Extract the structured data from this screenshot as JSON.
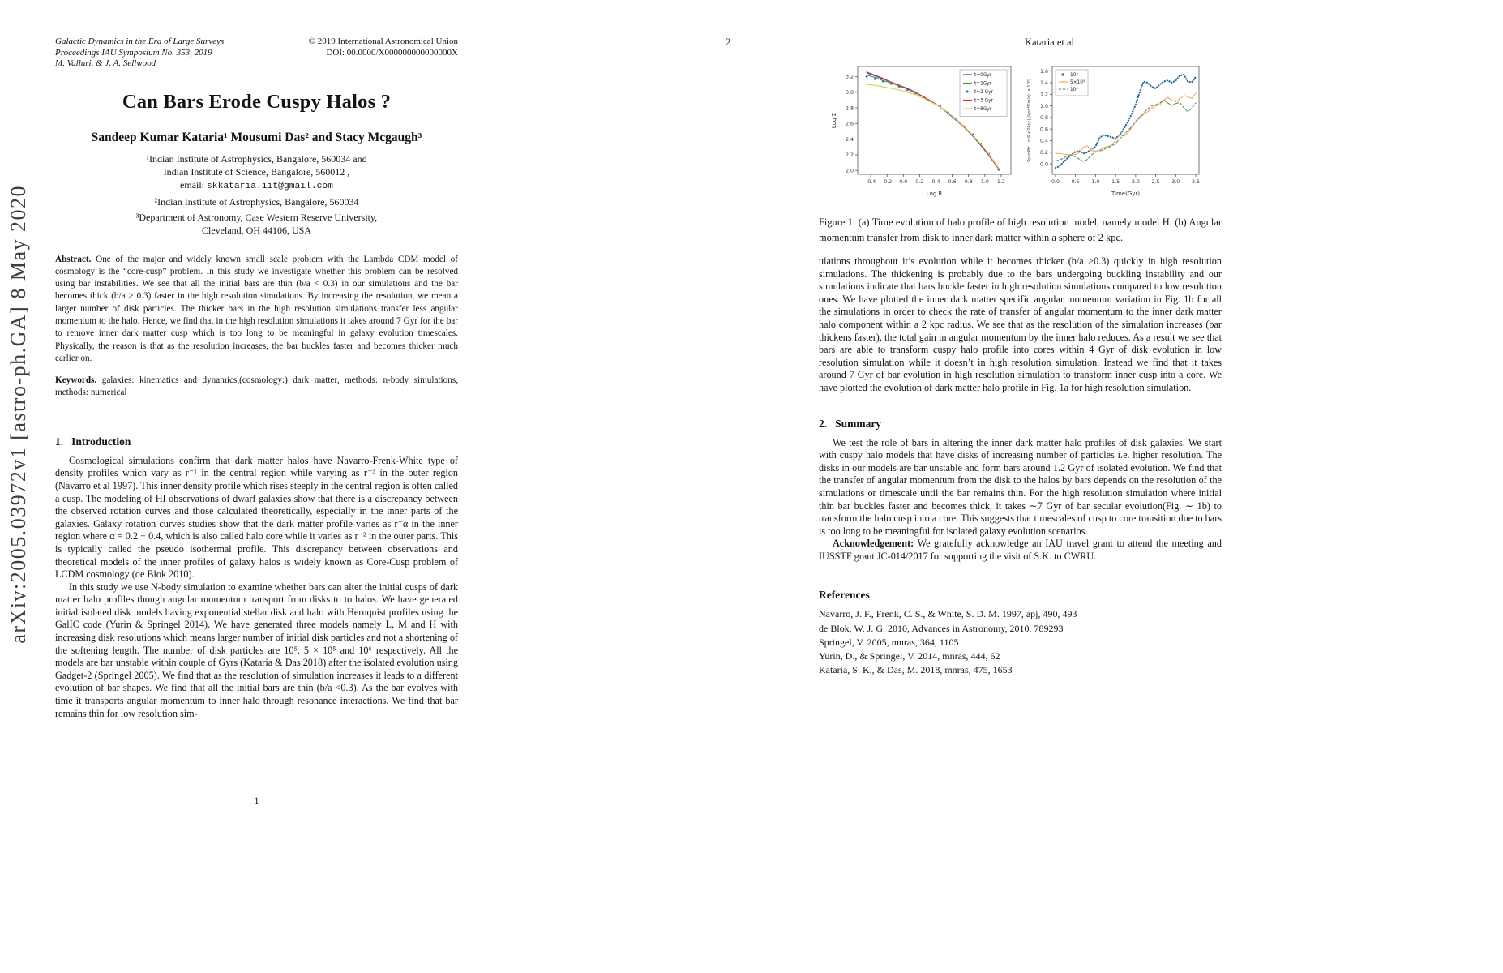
{
  "sidebar": {
    "arxiv_stamp": "arXiv:2005.03972v1  [astro-ph.GA]  8 May 2020"
  },
  "page1": {
    "header": {
      "series": "Galactic Dynamics in the Era of Large Surveys",
      "proceedings": "Proceedings IAU Symposium No. 353, 2019",
      "editors": "M. Valluri, & J. A. Sellwood",
      "copyright": "© 2019 International Astronomical Union",
      "doi": "DOI: 00.0000/X000000000000000X"
    },
    "title": "Can Bars Erode Cuspy Halos ?",
    "authors": "Sandeep Kumar Kataria¹ Mousumi Das² and Stacy Mcgaugh³",
    "affiliations": {
      "line1": "¹Indian Institute of Astrophysics, Bangalore, 560034 and",
      "line2": "Indian Institute of Science, Bangalore, 560012 ,",
      "email_label": "email: ",
      "email_value": "skkataria.iit@gmail.com",
      "line3": "²Indian Institute of Astrophysics, Bangalore, 560034",
      "line4": "³Department of Astronomy, Case Western Reserve University,",
      "line5": "Cleveland, OH 44106, USA"
    },
    "abstract": {
      "label": "Abstract.",
      "text": " One of the major and widely known small scale problem with the Lambda CDM model of cosmology is the “core-cusp” problem. In this study we investigate whether this problem can be resolved using bar instabilities. We see that all the initial bars are thin (b/a < 0.3) in our simulations and the bar becomes thick (b/a > 0.3) faster in the high resolution simulations. By increasing the resolution, we mean a larger number of disk particles. The thicker bars in the high resolution simulations transfer less angular momentum to the halo. Hence, we find that in the high resolution simulations it takes around 7 Gyr for the bar to remove inner dark matter cusp which is too long to be meaningful in galaxy evolution timescales. Physically, the reason is that as the resolution increases, the bar buckles faster and becomes thicker much earlier on."
    },
    "keywords": {
      "label": "Keywords.",
      "text": " galaxies: kinematics and dynamics,(cosmology:) dark matter, methods: n-body simulations, methods: numerical"
    },
    "intro": {
      "number": "1.",
      "heading": "Introduction",
      "para1": "Cosmological simulations confirm that dark matter halos have Navarro-Frenk-White type of density profiles which vary as r⁻¹ in the central region while varying as r⁻³ in the outer region (Navarro et al 1997). This inner density profile which rises steeply in the central region is often called a cusp. The modeling of HI observations of dwarf galaxies show that there is a discrepancy between the observed rotation curves and those calculated theoretically, especially in the inner parts of the galaxies. Galaxy rotation curves studies show that the dark matter profile varies as r⁻α in the inner region where α = 0.2 − 0.4, which is also called halo core while it varies as r⁻² in the outer parts. This is typically called the pseudo isothermal profile. This discrepancy between observations and theoretical models of the inner profiles of galaxy halos is widely known as Core-Cusp problem of LCDM cosmology (de Blok 2010).",
      "para2": "In this study we use N-body simulation to examine whether bars can alter the initial cusps of dark matter halo profiles though angular momentum transport from disks to to halos. We have generated initial isolated disk models having exponential stellar disk and halo with Hernquist profiles using the GalIC code (Yurin & Springel 2014). We have generated three models namely L, M and H with increasing disk resolutions which means larger number of initial disk particles and not a shortening of the softening length. The number of disk particles are 10⁵, 5 × 10⁵ and 10⁶ respectively. All the models are bar unstable within couple of Gyrs (Kataria & Das 2018) after the isolated evolution using Gadget-2 (Springel 2005). We find that as the resolution of simulation increases it leads to a different evolution of bar shapes. We find that all the initial bars are thin (b/a <0.3). As the bar evolves with time it transports angular momentum to inner halo through resonance interactions. We find that bar remains thin for low resolution sim-"
    },
    "page_number": "1"
  },
  "page2": {
    "page_number": "2",
    "running_head": "Kataria et al",
    "figure_caption": "Figure 1: (a) Time evolution of halo profile of high resolution model, namely model H. (b) Angular momentum transfer from disk to inner dark matter within a sphere of 2 kpc.",
    "para1": "ulations throughout it’s evolution while it becomes thicker (b/a >0.3) quickly in high resolution simulations. The thickening is probably due to the bars undergoing buckling instability and our simulations indicate that bars buckle faster in high resolution simulations compared to low resolution ones. We have plotted the inner dark matter specific angular momentum variation in Fig. 1b for all the simulations in order to check the rate of transfer of angular momentum to the inner dark matter halo component within a 2 kpc radius. We see that as the resolution of the simulation increases (bar thickens faster), the total gain in angular momentum by the inner halo reduces. As a result we see that bars are able to transform cuspy halo profile into cores within 4 Gyr of disk evolution in low resolution simulation while it doesn’t in high resolution simulation. Instead we find that it takes around 7 Gyr of bar evolution in high resolution simulation to transform inner cusp into a core. We have plotted the evolution of dark matter halo profile in Fig. 1a for high resolution simulation.",
    "summary": {
      "number": "2.",
      "heading": "Summary",
      "para": "We test the role of bars in altering the inner dark matter halo profiles of disk galaxies. We start with cuspy halo models that have disks of increasing number of particles i.e. higher resolution. The disks in our models are bar unstable and form bars around 1.2 Gyr of isolated evolution. We find that the transfer of angular momentum from the disk to the halos by bars depends on the resolution of the simulations or timescale until the bar remains thin. For the high resolution simulation where initial thin bar buckles faster and becomes thick, it takes ∼7 Gyr of bar secular evolution(Fig. ∼ 1b) to transform the halo cusp into a core. This suggests that timescales of cusp to core transition due to bars is too long to be meaningful for isolated galaxy evolution scenarios."
    },
    "acknowledgement": {
      "label": "Acknowledgement:",
      "text": " We gratefully acknowledge an IAU travel grant to attend the meeting and IUSSTF grant JC-014/2017 for supporting the visit of S.K. to CWRU."
    },
    "references": {
      "heading": "References",
      "entries": [
        "Navarro, J. F., Frenk, C. S., & White, S. D. M. 1997, apj, 490, 493",
        "de Blok, W. J. G. 2010, Advances in Astronomy, 2010, 789293",
        "Springel, V. 2005, mnras, 364, 1105",
        "Yurin, D., & Springel, V. 2014, mnras, 444, 62",
        "Kataria, S. K., & Das, M. 2018, mnras, 475, 1653"
      ]
    }
  },
  "chart_data": [
    {
      "id": "halo-profile",
      "type": "line",
      "title": "",
      "xlabel": "Log R",
      "ylabel": "Log Σ",
      "xlim": [
        -0.56,
        1.32
      ],
      "ylim": [
        1.95,
        3.33
      ],
      "xticks": [
        -0.4,
        -0.2,
        0.0,
        0.2,
        0.4,
        0.6,
        0.8,
        1.0,
        1.2
      ],
      "yticks": [
        2.0,
        2.2,
        2.4,
        2.6,
        2.8,
        3.0,
        3.2
      ],
      "grid": false,
      "legend_position": "top-right",
      "x": [
        -0.45,
        -0.35,
        -0.25,
        -0.15,
        -0.05,
        0.05,
        0.15,
        0.25,
        0.35,
        0.45,
        0.55,
        0.65,
        0.75,
        0.85,
        0.95,
        1.05,
        1.17
      ],
      "series": [
        {
          "name": "t=0Gyr",
          "style": "line",
          "color": "#3843c6",
          "values": [
            3.25,
            3.21,
            3.17,
            3.13,
            3.09,
            3.05,
            3.0,
            2.94,
            2.88,
            2.81,
            2.73,
            2.64,
            2.55,
            2.44,
            2.32,
            2.19,
            2.02
          ]
        },
        {
          "name": "t=1Gyr",
          "style": "line",
          "color": "#3f9c42",
          "values": [
            3.22,
            3.19,
            3.15,
            3.12,
            3.08,
            3.04,
            2.99,
            2.94,
            2.88,
            2.81,
            2.74,
            2.65,
            2.56,
            2.45,
            2.33,
            2.2,
            2.03
          ]
        },
        {
          "name": "t=2 Gyr",
          "style": "dots",
          "color": "#2f7fb8",
          "values": [
            3.2,
            3.17,
            3.14,
            3.11,
            3.07,
            3.03,
            2.99,
            2.94,
            2.88,
            2.82,
            2.74,
            2.66,
            2.56,
            2.46,
            2.34,
            2.21,
            2.01
          ]
        },
        {
          "name": "t=3 Gyr",
          "style": "line",
          "color": "#d63a34",
          "values": [
            3.26,
            3.22,
            3.18,
            3.13,
            3.09,
            3.04,
            3.0,
            2.94,
            2.88,
            2.81,
            2.74,
            2.65,
            2.55,
            2.45,
            2.33,
            2.2,
            2.02
          ]
        },
        {
          "name": "t=8Gyr",
          "style": "line",
          "color": "#ddce4e",
          "values": [
            3.1,
            3.09,
            3.07,
            3.05,
            3.03,
            3.0,
            2.97,
            2.92,
            2.87,
            2.81,
            2.74,
            2.65,
            2.56,
            2.45,
            2.34,
            2.21,
            2.03
          ]
        }
      ]
    },
    {
      "id": "angular-momentum",
      "type": "line",
      "title": "",
      "xlabel": "Time(Gyr)",
      "ylabel": "Specific Lz (R<2kpc) (kpc*Km/s) (x 10⁵)",
      "xlim": [
        -0.08,
        3.58
      ],
      "ylim": [
        -0.18,
        1.68
      ],
      "xticks": [
        0.0,
        0.5,
        1.0,
        1.5,
        2.0,
        2.5,
        3.0,
        3.5
      ],
      "yticks": [
        0.0,
        0.2,
        0.4,
        0.6,
        0.8,
        1.0,
        1.2,
        1.4,
        1.6
      ],
      "grid": false,
      "legend_position": "top-left",
      "x": [
        0,
        0.1,
        0.2,
        0.3,
        0.4,
        0.5,
        0.6,
        0.7,
        0.8,
        0.9,
        1.0,
        1.1,
        1.2,
        1.3,
        1.4,
        1.5,
        1.6,
        1.7,
        1.8,
        1.9,
        2.0,
        2.1,
        2.2,
        2.3,
        2.4,
        2.5,
        2.6,
        2.7,
        2.8,
        2.9,
        3.0,
        3.1,
        3.2,
        3.3,
        3.4,
        3.5
      ],
      "series": [
        {
          "name": "10⁵",
          "style": "thickdot",
          "color": "#2e6c94",
          "values": [
            -0.07,
            -0.04,
            0.03,
            0.1,
            0.16,
            0.21,
            0.22,
            0.18,
            0.2,
            0.26,
            0.3,
            0.45,
            0.5,
            0.48,
            0.46,
            0.44,
            0.5,
            0.6,
            0.72,
            0.86,
            1.02,
            1.24,
            1.42,
            1.4,
            1.33,
            1.3,
            1.37,
            1.42,
            1.44,
            1.4,
            1.44,
            1.52,
            1.54,
            1.42,
            1.41,
            1.5
          ]
        },
        {
          "name": "5×10⁵",
          "style": "line",
          "color": "#f0a860",
          "values": [
            0.18,
            0.18,
            0.17,
            0.16,
            0.15,
            0.16,
            0.2,
            0.29,
            0.31,
            0.23,
            0.22,
            0.24,
            0.28,
            0.3,
            0.32,
            0.41,
            0.5,
            0.48,
            0.53,
            0.63,
            0.73,
            0.79,
            0.85,
            0.9,
            0.96,
            1.0,
            1.02,
            1.1,
            1.15,
            1.1,
            1.07,
            1.12,
            1.18,
            1.16,
            1.13,
            1.22
          ]
        },
        {
          "name": "10⁶",
          "style": "dashed",
          "color": "#5f8f70",
          "values": [
            0.05,
            0.07,
            0.1,
            0.14,
            0.15,
            0.12,
            0.08,
            0.04,
            0.08,
            0.16,
            0.2,
            0.22,
            0.25,
            0.28,
            0.31,
            0.35,
            0.43,
            0.5,
            0.57,
            0.64,
            0.73,
            0.81,
            0.88,
            0.95,
            1.0,
            1.02,
            1.05,
            1.1,
            1.05,
            1.01,
            1.04,
            1.06,
            0.97,
            0.9,
            0.96,
            1.05
          ]
        }
      ]
    }
  ]
}
